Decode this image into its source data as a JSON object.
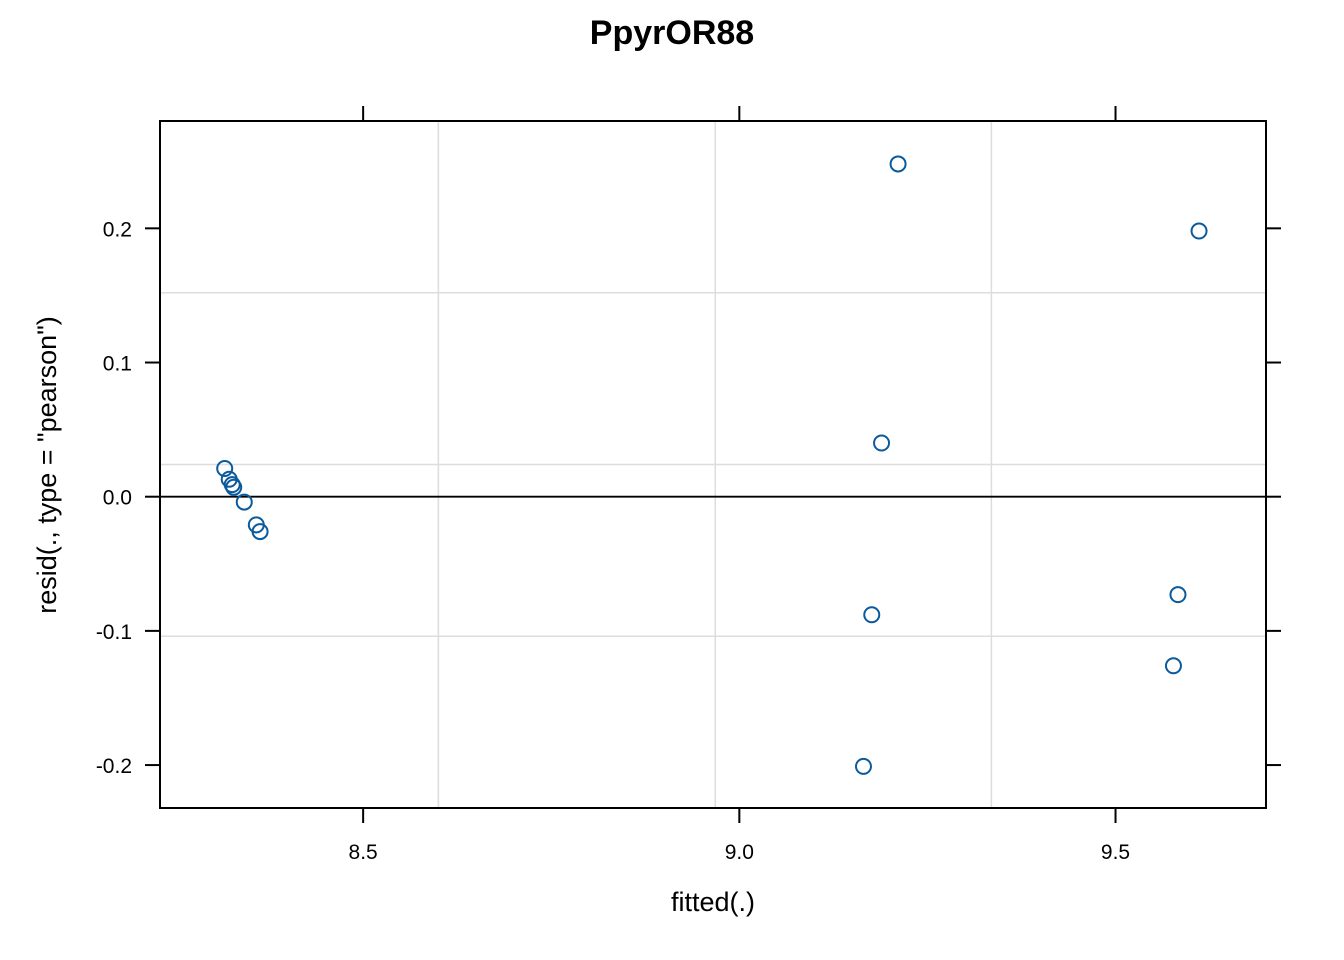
{
  "chart_data": {
    "type": "scatter",
    "title": "PpyrOR88",
    "xlabel": "fitted(.)",
    "ylabel": "resid(., type = \"pearson\")",
    "xlim": [
      8.23,
      9.7
    ],
    "ylim": [
      -0.232,
      0.28
    ],
    "x_ticks": [
      8.5,
      9.0,
      9.5
    ],
    "x_tick_labels": [
      "8.5",
      "9.0",
      "9.5"
    ],
    "y_ticks": [
      -0.2,
      -0.1,
      0.0,
      0.1,
      0.2
    ],
    "y_tick_labels": [
      "-0.2",
      "-0.1",
      "0.0",
      "0.1",
      "0.2"
    ],
    "x_grid": [
      8.6,
      8.968,
      9.335
    ],
    "y_grid": [
      -0.104,
      0.024,
      0.152
    ],
    "reference_line_y": 0,
    "grid": true,
    "point_color": "#0a5a9c",
    "grid_color": "#dddddd",
    "points": [
      {
        "x": 8.316,
        "y": 0.021
      },
      {
        "x": 8.322,
        "y": 0.013
      },
      {
        "x": 8.326,
        "y": 0.009
      },
      {
        "x": 8.328,
        "y": 0.007
      },
      {
        "x": 8.342,
        "y": -0.004
      },
      {
        "x": 8.358,
        "y": -0.021
      },
      {
        "x": 8.363,
        "y": -0.026
      },
      {
        "x": 9.165,
        "y": -0.201
      },
      {
        "x": 9.176,
        "y": -0.088
      },
      {
        "x": 9.189,
        "y": 0.04
      },
      {
        "x": 9.211,
        "y": 0.248
      },
      {
        "x": 9.577,
        "y": -0.126
      },
      {
        "x": 9.583,
        "y": -0.073
      },
      {
        "x": 9.611,
        "y": 0.198
      }
    ]
  }
}
